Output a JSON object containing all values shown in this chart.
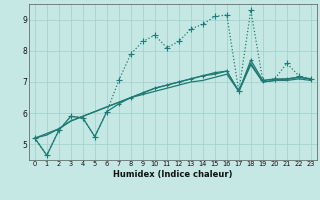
{
  "bg_color": "#c5e8e5",
  "grid_color": "#9ecfcc",
  "line_color": "#1e7a72",
  "xlabel": "Humidex (Indice chaleur)",
  "ylim": [
    4.5,
    9.5
  ],
  "xlim": [
    -0.5,
    23.5
  ],
  "yticks": [
    5,
    6,
    7,
    8,
    9
  ],
  "xticks": [
    0,
    1,
    2,
    3,
    4,
    5,
    6,
    7,
    8,
    9,
    10,
    11,
    12,
    13,
    14,
    15,
    16,
    17,
    18,
    19,
    20,
    21,
    22,
    23
  ],
  "series": [
    {
      "y": [
        5.2,
        4.65,
        5.45,
        5.9,
        5.85,
        5.25,
        6.05,
        7.05,
        7.9,
        8.3,
        8.5,
        8.1,
        8.3,
        8.7,
        8.85,
        9.1,
        9.15,
        6.7,
        9.3,
        7.05,
        7.1,
        7.6,
        7.2,
        7.1
      ],
      "linestyle": "dotted",
      "marker": "+",
      "lw": 0.9,
      "ms": 4
    },
    {
      "y": [
        5.2,
        4.65,
        5.45,
        5.9,
        5.85,
        5.25,
        6.05,
        6.3,
        6.5,
        6.65,
        6.8,
        6.9,
        7.0,
        7.1,
        7.2,
        7.3,
        7.35,
        6.7,
        7.7,
        7.05,
        7.1,
        7.1,
        7.15,
        7.1
      ],
      "linestyle": "solid",
      "marker": "+",
      "lw": 0.9,
      "ms": 3
    },
    {
      "y": [
        5.2,
        5.3,
        5.5,
        5.75,
        5.9,
        6.05,
        6.2,
        6.35,
        6.5,
        6.6,
        6.7,
        6.8,
        6.9,
        7.0,
        7.05,
        7.15,
        7.25,
        6.7,
        7.55,
        7.0,
        7.05,
        7.05,
        7.1,
        7.05
      ],
      "linestyle": "solid",
      "marker": null,
      "lw": 0.9,
      "ms": 0
    },
    {
      "y": [
        5.2,
        5.35,
        5.5,
        5.75,
        5.9,
        6.05,
        6.2,
        6.35,
        6.5,
        6.65,
        6.8,
        6.9,
        7.0,
        7.1,
        7.2,
        7.25,
        7.35,
        6.7,
        7.6,
        7.0,
        7.05,
        7.1,
        7.15,
        7.1
      ],
      "linestyle": "solid",
      "marker": null,
      "lw": 0.9,
      "ms": 0
    }
  ]
}
